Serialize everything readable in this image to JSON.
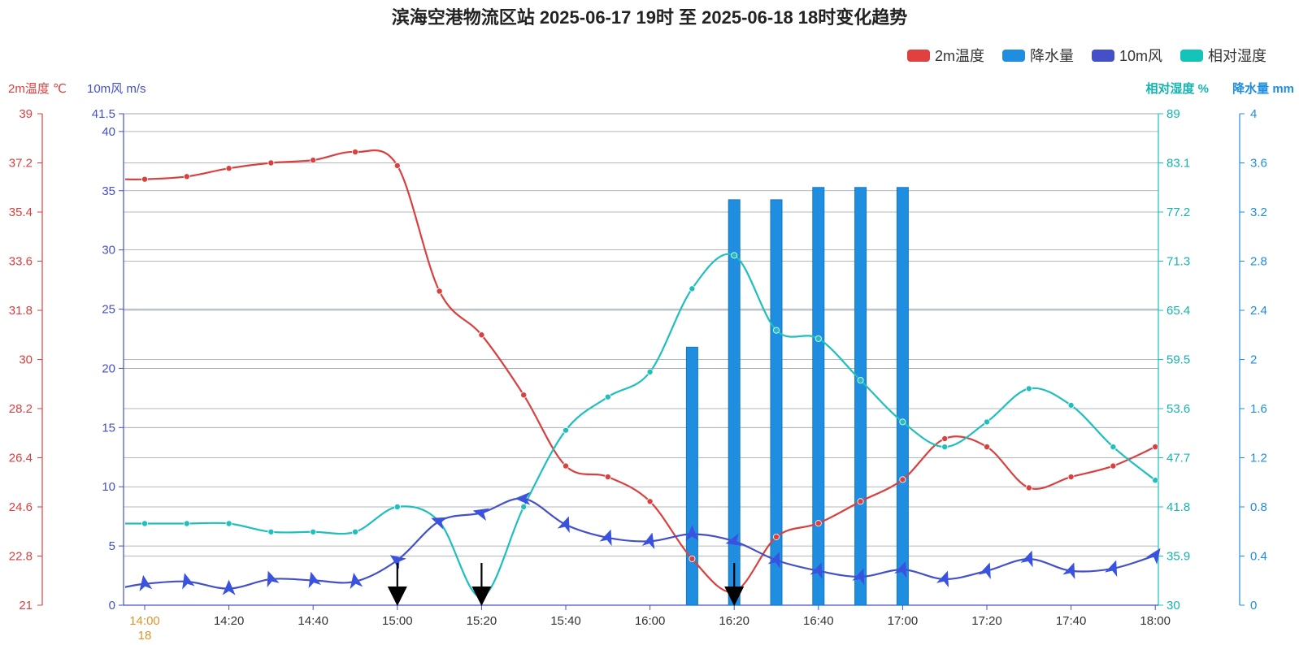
{
  "chart_data": {
    "type": "line",
    "title": "滨海空港物流区站 2025-06-17 19时 至 2025-06-18 18时变化趋势",
    "legend": [
      {
        "name": "2m温度",
        "color": "#e0403f"
      },
      {
        "name": "降水量",
        "color": "#1f8ee0"
      },
      {
        "name": "10m风",
        "color": "#4450c8"
      },
      {
        "name": "相对湿度",
        "color": "#14c4b8"
      }
    ],
    "axis_titles": {
      "temp": "2m温度 ℃",
      "wind": "10m风 m/s",
      "humidity": "相对湿度 %",
      "precip": "降水量 mm"
    },
    "x_ticks": [
      "14:00",
      "14:20",
      "14:40",
      "15:00",
      "15:20",
      "15:40",
      "16:00",
      "16:20",
      "16:40",
      "17:00",
      "17:20",
      "17:40",
      "18:00"
    ],
    "x_first_sub": "18",
    "x_times": [
      "14:00",
      "14:10",
      "14:20",
      "14:30",
      "14:40",
      "14:50",
      "15:00",
      "15:10",
      "15:20",
      "15:30",
      "15:40",
      "15:50",
      "16:00",
      "16:10",
      "16:20",
      "16:30",
      "16:40",
      "16:50",
      "17:00",
      "17:10",
      "17:20",
      "17:30",
      "17:40",
      "17:50",
      "18:00"
    ],
    "temp_axis": {
      "ticks": [
        "39",
        "37.2",
        "35.4",
        "33.6",
        "31.8",
        "30",
        "28.2",
        "26.4",
        "24.6",
        "22.8",
        "21"
      ],
      "ylim": [
        21,
        39
      ]
    },
    "wind_axis": {
      "ticks": [
        "41.5",
        "40",
        "35",
        "30",
        "25",
        "20",
        "15",
        "10",
        "5",
        "0"
      ],
      "ylim": [
        0,
        41.5
      ]
    },
    "humidity_axis": {
      "ticks": [
        "89",
        "83.1",
        "77.2",
        "71.3",
        "65.4",
        "59.5",
        "53.6",
        "47.7",
        "41.8",
        "35.9",
        "30"
      ],
      "ylim": [
        30,
        89
      ]
    },
    "precip_axis": {
      "ticks": [
        "4",
        "3.6",
        "3.2",
        "2.8",
        "2.4",
        "2",
        "1.6",
        "1.2",
        "0.8",
        "0.4",
        "0"
      ],
      "ylim": [
        0,
        4
      ]
    },
    "series": [
      {
        "name": "2m温度",
        "axis": "temp",
        "color": "#d94040",
        "values": [
          36.6,
          36.7,
          37.0,
          37.2,
          37.3,
          37.6,
          37.1,
          32.5,
          30.9,
          28.7,
          26.1,
          25.7,
          24.8,
          22.7,
          21.5,
          23.5,
          24.0,
          24.8,
          25.6,
          27.1,
          26.8,
          25.3,
          25.7,
          26.1,
          26.8
        ]
      },
      {
        "name": "相对湿度",
        "axis": "humidity",
        "color": "#1fbfbd",
        "values": [
          39.8,
          39.8,
          39.8,
          38.8,
          38.8,
          38.8,
          41.8,
          40.0,
          31.0,
          41.8,
          51.0,
          55.0,
          58.0,
          68.0,
          72.0,
          63.0,
          62.0,
          57.0,
          52.0,
          49.0,
          52.0,
          56.0,
          54.0,
          49.0,
          45.0
        ]
      },
      {
        "name": "10m风",
        "axis": "wind",
        "color": "#4450c8",
        "values": [
          1.8,
          2.0,
          1.4,
          2.2,
          2.1,
          2.0,
          3.8,
          7.1,
          7.8,
          9.0,
          6.8,
          5.7,
          5.4,
          6.0,
          5.4,
          3.8,
          2.9,
          2.4,
          3.0,
          2.2,
          2.9,
          3.9,
          2.9,
          3.1,
          4.2
        ]
      },
      {
        "name": "降水量",
        "axis": "precip",
        "color": "#1f8ee0",
        "type": "bar",
        "values": [
          0,
          0,
          0,
          0,
          0,
          0,
          0,
          0,
          0,
          0,
          0,
          0,
          0,
          2.1,
          3.3,
          3.3,
          3.4,
          3.4,
          3.4,
          0,
          0,
          0,
          0,
          0,
          0
        ]
      }
    ],
    "wind_direction_deg": [
      260,
      255,
      270,
      250,
      255,
      260,
      215,
      200,
      195,
      180,
      290,
      290,
      285,
      270,
      165,
      290,
      290,
      290,
      290,
      290,
      290,
      290,
      290,
      290,
      305
    ],
    "arrow_times": [
      "15:00",
      "15:20",
      "16:20"
    ],
    "grid": true,
    "legend_position": "top-right"
  }
}
